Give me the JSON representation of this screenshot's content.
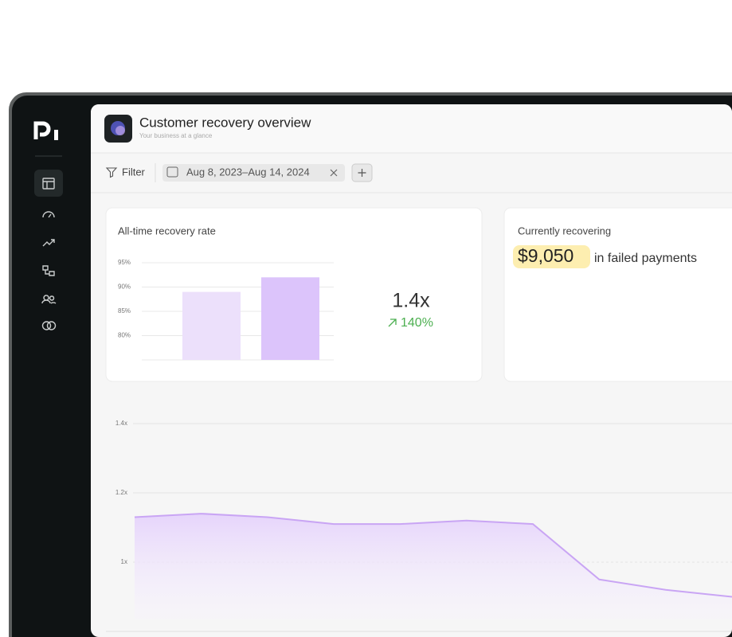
{
  "header": {
    "title": "Customer recovery overview",
    "subtitle": "Your business at a glance"
  },
  "filter": {
    "label": "Filter",
    "date_range": "Aug 8, 2023–Aug 14, 2024"
  },
  "recovery_rate_card": {
    "title": "All-time recovery rate",
    "chart": {
      "type": "bar",
      "values": [
        89,
        92
      ],
      "colors": [
        "#ece0fb",
        "#dcc4fb"
      ],
      "ylim": [
        75,
        95
      ],
      "yticks": [
        {
          "value": 80,
          "label": "80%"
        },
        {
          "value": 85,
          "label": "85%"
        },
        {
          "value": 90,
          "label": "90%"
        },
        {
          "value": 95,
          "label": "95%"
        }
      ],
      "grid": true
    },
    "multiplier": "1.4x",
    "change": "140%"
  },
  "recovering_card": {
    "title": "Currently recovering",
    "amount": "$9,050",
    "text": "in failed payments"
  },
  "trend_chart": {
    "type": "area",
    "values": [
      1.13,
      1.14,
      1.13,
      1.11,
      1.11,
      1.12,
      1.11,
      0.95,
      0.92,
      0.9
    ],
    "color": "#c9a5f4",
    "ylim": [
      0.8,
      1.4
    ],
    "yticks": [
      {
        "value": 1,
        "label": "1x"
      },
      {
        "value": 1.2,
        "label": "1.2x"
      },
      {
        "value": 1.4,
        "label": "1.4x"
      }
    ],
    "grid": true
  }
}
